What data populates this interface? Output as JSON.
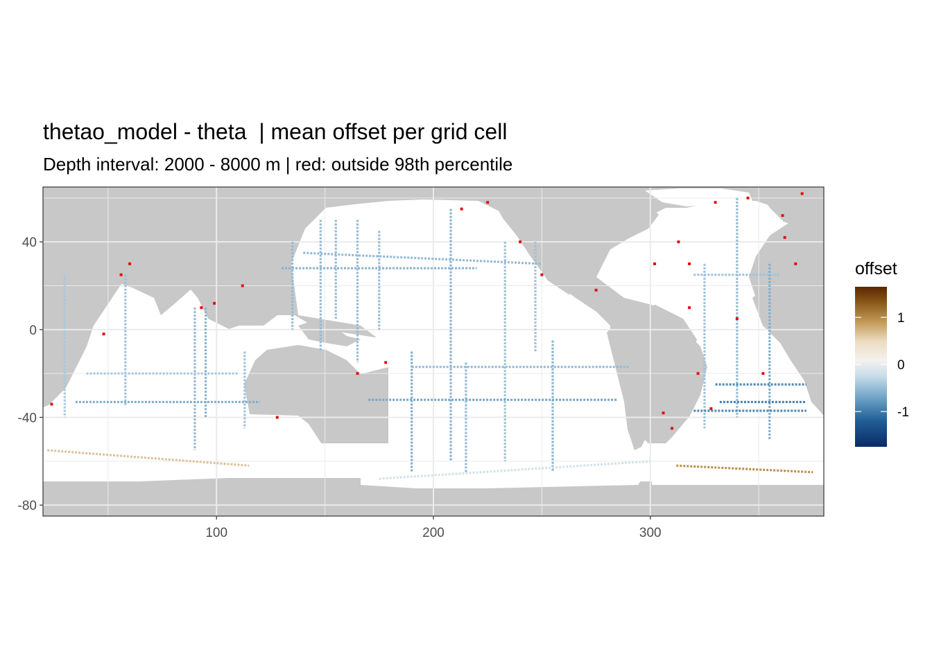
{
  "chart_data": {
    "type": "heatmap",
    "title": "thetao_model - theta  | mean offset per grid cell",
    "subtitle": "Depth interval: 2000 - 8000 m | red: outside 98th percentile",
    "xlabel": "",
    "ylabel": "",
    "xlim": [
      20,
      380
    ],
    "ylim": [
      -85,
      65
    ],
    "x_ticks": [
      100,
      200,
      300
    ],
    "x_tick_labels": [
      "100",
      "200",
      "300"
    ],
    "y_ticks": [
      40,
      0,
      -40,
      -80
    ],
    "y_tick_labels": [
      "40",
      "0",
      "-40",
      "-80"
    ],
    "grid": true,
    "legend": {
      "title": "offset",
      "position": "right",
      "range": [
        -1.75,
        1.65
      ],
      "ticks": [
        1,
        0,
        -1
      ],
      "tick_labels": [
        "1",
        "0",
        "-1"
      ]
    },
    "colors": {
      "land": "#c8c8c8",
      "ocean": "#ffffff",
      "outlier": "#e01010",
      "scale_low": "#0b2e6e",
      "scale_mid": "#f5f5f5",
      "scale_high": "#6a2d00"
    },
    "tracks": [
      {
        "from": [
          30,
          25
        ],
        "to": [
          30,
          -40
        ],
        "offset": -0.3
      },
      {
        "from": [
          58,
          25
        ],
        "to": [
          58,
          -35
        ],
        "offset": -0.35
      },
      {
        "from": [
          90,
          10
        ],
        "to": [
          90,
          -55
        ],
        "offset": -0.4
      },
      {
        "from": [
          95,
          10
        ],
        "to": [
          95,
          -40
        ],
        "offset": -0.45
      },
      {
        "from": [
          113,
          -10
        ],
        "to": [
          113,
          -45
        ],
        "offset": -0.35
      },
      {
        "from": [
          40,
          -20
        ],
        "to": [
          110,
          -20
        ],
        "offset": -0.3
      },
      {
        "from": [
          35,
          -33
        ],
        "to": [
          120,
          -33
        ],
        "offset": -0.5
      },
      {
        "from": [
          135,
          40
        ],
        "to": [
          135,
          0
        ],
        "offset": -0.4
      },
      {
        "from": [
          148,
          50
        ],
        "to": [
          148,
          -10
        ],
        "offset": -0.4
      },
      {
        "from": [
          155,
          50
        ],
        "to": [
          155,
          5
        ],
        "offset": -0.4
      },
      {
        "from": [
          165,
          50
        ],
        "to": [
          165,
          -15
        ],
        "offset": -0.4
      },
      {
        "from": [
          175,
          45
        ],
        "to": [
          175,
          0
        ],
        "offset": -0.4
      },
      {
        "from": [
          130,
          28
        ],
        "to": [
          220,
          28
        ],
        "offset": -0.45
      },
      {
        "from": [
          140,
          35
        ],
        "to": [
          250,
          30
        ],
        "offset": -0.4
      },
      {
        "from": [
          190,
          -10
        ],
        "to": [
          190,
          -65
        ],
        "offset": -0.5
      },
      {
        "from": [
          208,
          55
        ],
        "to": [
          208,
          -60
        ],
        "offset": -0.45
      },
      {
        "from": [
          215,
          -15
        ],
        "to": [
          215,
          -65
        ],
        "offset": -0.4
      },
      {
        "from": [
          233,
          40
        ],
        "to": [
          233,
          -60
        ],
        "offset": -0.35
      },
      {
        "from": [
          247,
          40
        ],
        "to": [
          247,
          -10
        ],
        "offset": -0.35
      },
      {
        "from": [
          255,
          -5
        ],
        "to": [
          255,
          -65
        ],
        "offset": -0.45
      },
      {
        "from": [
          170,
          -32
        ],
        "to": [
          285,
          -32
        ],
        "offset": -0.55
      },
      {
        "from": [
          190,
          -17
        ],
        "to": [
          290,
          -17
        ],
        "offset": -0.4
      },
      {
        "from": [
          325,
          30
        ],
        "to": [
          325,
          -45
        ],
        "offset": -0.35
      },
      {
        "from": [
          340,
          60
        ],
        "to": [
          340,
          -40
        ],
        "offset": -0.4
      },
      {
        "from": [
          355,
          30
        ],
        "to": [
          355,
          -50
        ],
        "offset": -0.5
      },
      {
        "from": [
          320,
          25
        ],
        "to": [
          360,
          25
        ],
        "offset": -0.35
      },
      {
        "from": [
          330,
          -25
        ],
        "to": [
          372,
          -25
        ],
        "offset": -0.8
      },
      {
        "from": [
          332,
          -33
        ],
        "to": [
          372,
          -33
        ],
        "offset": -0.9
      },
      {
        "from": [
          320,
          -37
        ],
        "to": [
          372,
          -37
        ],
        "offset": -0.8
      },
      {
        "from": [
          22,
          -55
        ],
        "to": [
          115,
          -62
        ],
        "offset": 0.55
      },
      {
        "from": [
          312,
          -62
        ],
        "to": [
          375,
          -65
        ],
        "offset": 0.85
      },
      {
        "from": [
          175,
          -68
        ],
        "to": [
          300,
          -60
        ],
        "offset": -0.1
      }
    ],
    "outliers": [
      [
        56,
        25
      ],
      [
        60,
        30
      ],
      [
        93,
        10
      ],
      [
        99,
        12
      ],
      [
        112,
        20
      ],
      [
        128,
        -40
      ],
      [
        165,
        -20
      ],
      [
        178,
        -15
      ],
      [
        213,
        55
      ],
      [
        225,
        58
      ],
      [
        240,
        40
      ],
      [
        250,
        25
      ],
      [
        275,
        18
      ],
      [
        306,
        -38
      ],
      [
        310,
        -45
      ],
      [
        313,
        40
      ],
      [
        318,
        30
      ],
      [
        330,
        58
      ],
      [
        345,
        60
      ],
      [
        362,
        42
      ],
      [
        367,
        30
      ],
      [
        361,
        52
      ],
      [
        370,
        62
      ],
      [
        322,
        -20
      ],
      [
        352,
        -20
      ],
      [
        340,
        5
      ],
      [
        318,
        10
      ],
      [
        328,
        -36
      ],
      [
        302,
        30
      ],
      [
        24,
        -34
      ],
      [
        48,
        -2
      ]
    ]
  }
}
